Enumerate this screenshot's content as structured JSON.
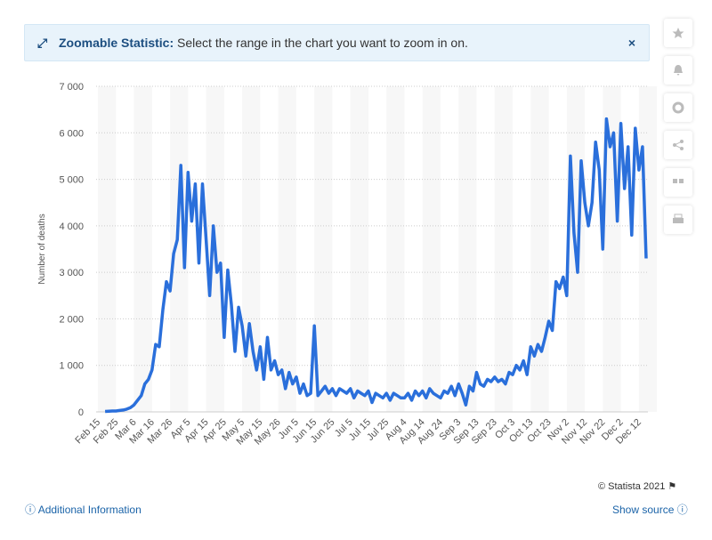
{
  "notice": {
    "title": "Zoomable Statistic:",
    "text": "Select the range in the chart you want to zoom in on."
  },
  "footer": {
    "copyright": "© Statista 2021",
    "info": "Additional Information",
    "source": "Show source"
  },
  "chart_data": {
    "type": "line",
    "y_label": "Number of deaths",
    "color": "#2a6fdb",
    "grid": true,
    "categories": [
      "Feb 15",
      null,
      null,
      null,
      null,
      "Feb 25",
      null,
      null,
      null,
      null,
      "Mar 6",
      null,
      null,
      null,
      null,
      "Mar 16",
      null,
      null,
      null,
      null,
      "Mar 26",
      null,
      null,
      null,
      null,
      "Apr 5",
      null,
      null,
      null,
      null,
      "Apr 15",
      null,
      null,
      null,
      null,
      "Apr 25",
      null,
      null,
      null,
      null,
      "May 5",
      null,
      null,
      null,
      null,
      "May 15",
      null,
      null,
      null,
      null,
      "May 26",
      null,
      null,
      null,
      null,
      "Jun 5",
      null,
      null,
      null,
      null,
      "Jun 15",
      null,
      null,
      null,
      null,
      "Jun 25",
      null,
      null,
      null,
      null,
      "Jul 5",
      null,
      null,
      null,
      null,
      "Jul 15",
      null,
      null,
      null,
      null,
      "Jul 25",
      null,
      null,
      null,
      null,
      "Aug 4",
      null,
      null,
      null,
      null,
      "Aug 14",
      null,
      null,
      null,
      null,
      "Aug 24",
      null,
      null,
      null,
      null,
      "Sep 3",
      null,
      null,
      null,
      null,
      "Sep 13",
      null,
      null,
      null,
      null,
      "Sep 23",
      null,
      null,
      null,
      null,
      "Oct 3",
      null,
      null,
      null,
      null,
      "Oct 13",
      null,
      null,
      null,
      null,
      "Oct 23",
      null,
      null,
      null,
      null,
      "Nov 2",
      null,
      null,
      null,
      null,
      "Nov 12",
      null,
      null,
      null,
      null,
      "Nov 22",
      null,
      null,
      null,
      null,
      "Dec 2",
      null,
      null,
      null,
      null,
      "Dec 12",
      null,
      null
    ],
    "values": [
      null,
      null,
      10,
      15,
      20,
      20,
      30,
      40,
      60,
      90,
      150,
      250,
      350,
      600,
      700,
      900,
      1450,
      1400,
      2200,
      2800,
      2600,
      3400,
      3700,
      5300,
      3100,
      5150,
      4100,
      4900,
      3200,
      4900,
      3700,
      2500,
      4000,
      3000,
      3200,
      1600,
      3050,
      2300,
      1300,
      2250,
      1850,
      1200,
      1900,
      1300,
      900,
      1400,
      700,
      1600,
      900,
      1100,
      800,
      900,
      500,
      850,
      600,
      750,
      400,
      600,
      350,
      400,
      1850,
      350,
      450,
      550,
      400,
      500,
      350,
      500,
      450,
      400,
      500,
      300,
      450,
      400,
      350,
      450,
      200,
      400,
      350,
      300,
      400,
      250,
      400,
      350,
      300,
      300,
      400,
      250,
      450,
      350,
      450,
      300,
      500,
      400,
      350,
      300,
      450,
      400,
      550,
      350,
      600,
      400,
      150,
      550,
      450,
      850,
      600,
      550,
      700,
      650,
      750,
      650,
      700,
      600,
      850,
      800,
      1000,
      900,
      1100,
      800,
      1400,
      1200,
      1450,
      1300,
      1600,
      1950,
      1750,
      2800,
      2650,
      2900,
      2500,
      5500,
      3850,
      3000,
      5400,
      4500,
      4000,
      4500,
      5800,
      5200,
      3500,
      6300,
      5700,
      6000,
      4100,
      6200,
      4800,
      5700,
      3800,
      6100,
      5200,
      5700,
      3300
    ],
    "ylim": [
      0,
      7000
    ],
    "yticks": [
      0,
      {
        "value": 1000,
        "label": "1 000"
      },
      {
        "value": 2000,
        "label": "2 000"
      },
      {
        "value": 3000,
        "label": "3 000"
      },
      {
        "value": 4000,
        "label": "4 000"
      },
      {
        "value": 5000,
        "label": "5 000"
      },
      {
        "value": 6000,
        "label": "6 000"
      },
      {
        "value": 7000,
        "label": "7 000"
      }
    ]
  }
}
